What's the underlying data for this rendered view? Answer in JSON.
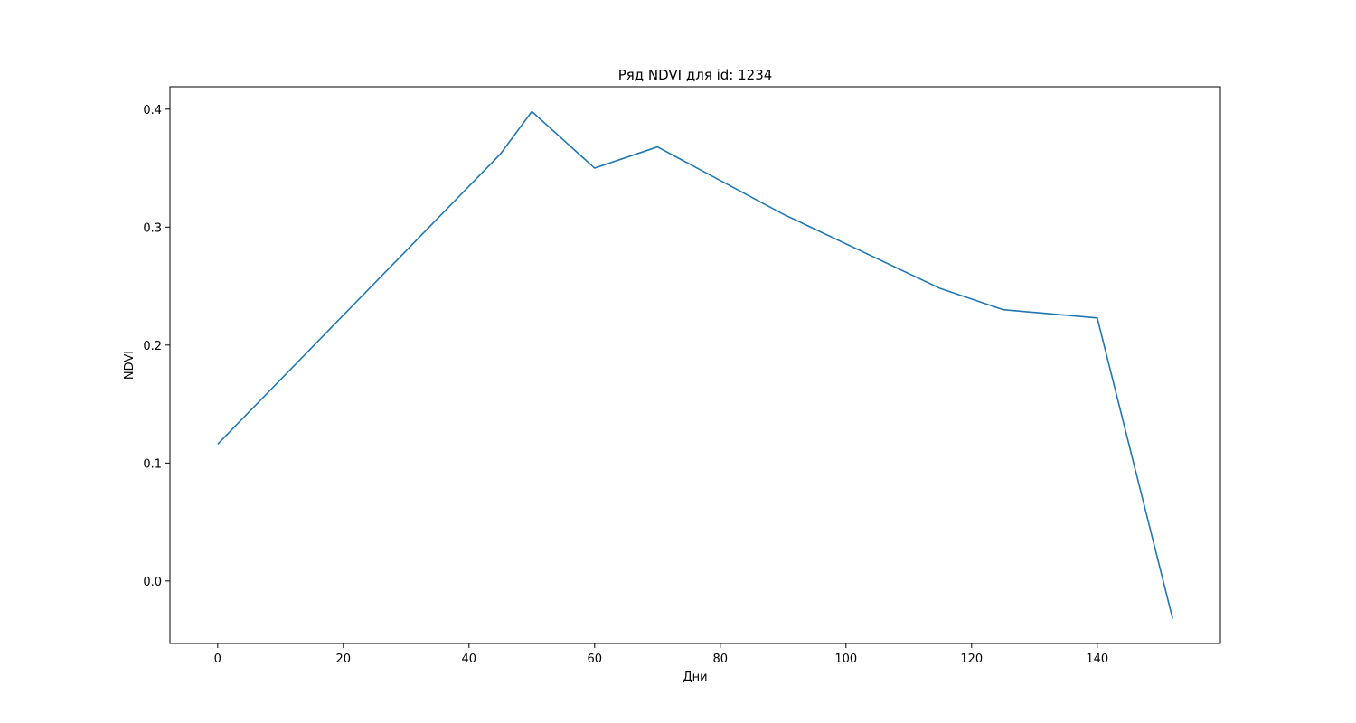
{
  "chart_data": {
    "type": "line",
    "title": "Ряд NDVI для id: 1234",
    "xlabel": "Дни",
    "ylabel": "NDVI",
    "xlim": [
      -7.6,
      159.6
    ],
    "ylim": [
      -0.053,
      0.419
    ],
    "xticks": [
      0,
      20,
      40,
      60,
      80,
      100,
      120,
      140
    ],
    "xtick_labels": [
      "0",
      "20",
      "40",
      "60",
      "80",
      "100",
      "120",
      "140"
    ],
    "yticks": [
      0.0,
      0.1,
      0.2,
      0.3,
      0.4
    ],
    "ytick_labels": [
      "0.0",
      "0.1",
      "0.2",
      "0.3",
      "0.4"
    ],
    "grid": false,
    "series": [
      {
        "color": "#1f77b4",
        "x": [
          0,
          45,
          50,
          60,
          70,
          90,
          115,
          125,
          140,
          152
        ],
        "y": [
          0.116,
          0.362,
          0.398,
          0.35,
          0.368,
          0.311,
          0.248,
          0.23,
          0.223,
          -0.032
        ]
      }
    ]
  }
}
